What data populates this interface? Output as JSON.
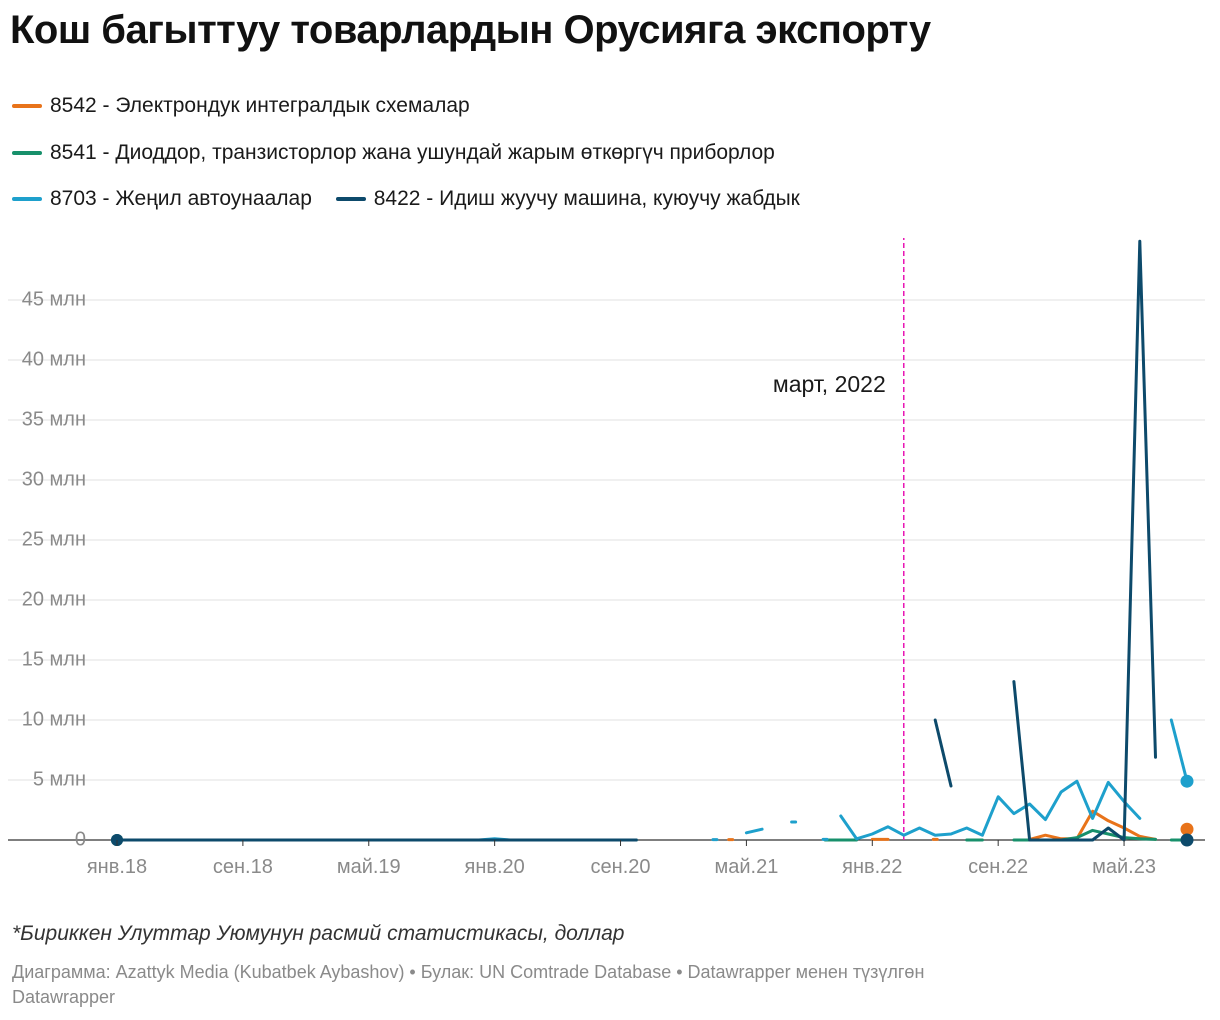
{
  "title": "Кош багыттуу товарлардын Орусияга экспорту",
  "note": "*Бириккен Улуттар Уюмунун расмий статистикасы, доллар",
  "credits": "Диаграмма: Azattyk Media (Kubatbek Aybashov) • Булак: UN Comtrade Database • Datawrapper менен түзүлгөн",
  "credits_brand": "Datawrapper",
  "chart_data": {
    "type": "line",
    "title": "Кош багыттуу товарлардын Орусияга экспорту",
    "x_unit": "month",
    "x_start": "2018-01",
    "x_end": "2023-09",
    "xlim": [
      "2018-01",
      "2023-09"
    ],
    "ylim": [
      0,
      50
    ],
    "y_unit": "млн доллар",
    "grid": true,
    "legend_position": "top",
    "x_ticks": [
      {
        "x": "2018-01",
        "label": "янв.18"
      },
      {
        "x": "2018-09",
        "label": "сен.18"
      },
      {
        "x": "2019-05",
        "label": "май.19"
      },
      {
        "x": "2020-01",
        "label": "янв.20"
      },
      {
        "x": "2020-09",
        "label": "сен.20"
      },
      {
        "x": "2021-05",
        "label": "май.21"
      },
      {
        "x": "2022-01",
        "label": "янв.22"
      },
      {
        "x": "2022-09",
        "label": "сен.22"
      },
      {
        "x": "2023-05",
        "label": "май.23"
      }
    ],
    "y_ticks": [
      {
        "value": 0,
        "label": "0"
      },
      {
        "value": 5,
        "label": "5 млн"
      },
      {
        "value": 10,
        "label": "10 млн"
      },
      {
        "value": 15,
        "label": "15 млн"
      },
      {
        "value": 20,
        "label": "20 млн"
      },
      {
        "value": 25,
        "label": "25 млн"
      },
      {
        "value": 30,
        "label": "30 млн"
      },
      {
        "value": 35,
        "label": "35 млн"
      },
      {
        "value": 40,
        "label": "40 млн"
      },
      {
        "value": 45,
        "label": "45 млн"
      }
    ],
    "annotation": {
      "x": "2022-03",
      "label": "март, 2022",
      "color": "#e815b4"
    },
    "series": [
      {
        "name": "8542 - Электрондук интегралдык схемалар",
        "color": "#e8731a",
        "segments": [
          [
            [
              "2018-01",
              0
            ],
            [
              "2020-10",
              0
            ]
          ],
          [
            [
              "2021-04",
              0.03
            ]
          ],
          [
            [
              "2022-01",
              0.05
            ],
            [
              "2022-02",
              0.05
            ]
          ],
          [
            [
              "2022-05",
              0.05
            ]
          ],
          [
            [
              "2022-11",
              0.05
            ],
            [
              "2022-12",
              0.4
            ],
            [
              "2023-01",
              0.1
            ],
            [
              "2023-02",
              0.1
            ],
            [
              "2023-03",
              2.4
            ],
            [
              "2023-04",
              1.6
            ],
            [
              "2023-05",
              1.0
            ],
            [
              "2023-06",
              0.3
            ],
            [
              "2023-07",
              0.05
            ]
          ]
        ],
        "end_point": [
          "2023-09",
          0.9
        ]
      },
      {
        "name": "8541 - Диоддор, транзисторлор жана ушундай жарым өткөргүч приборлор",
        "color": "#17906b",
        "segments": [
          [
            [
              "2018-01",
              0
            ],
            [
              "2020-10",
              0
            ]
          ],
          [
            [
              "2021-10",
              0
            ],
            [
              "2021-12",
              0
            ]
          ],
          [
            [
              "2022-07",
              0
            ],
            [
              "2022-08",
              0
            ]
          ],
          [
            [
              "2022-10",
              0
            ],
            [
              "2023-01",
              0
            ],
            [
              "2023-02",
              0.2
            ],
            [
              "2023-03",
              0.8
            ],
            [
              "2023-04",
              0.5
            ],
            [
              "2023-05",
              0.2
            ],
            [
              "2023-06",
              0.1
            ],
            [
              "2023-07",
              0.05
            ]
          ],
          [
            [
              "2023-08",
              0
            ],
            [
              "2023-09",
              0
            ]
          ]
        ],
        "end_point": null
      },
      {
        "name": "8703 - Жеңил автоунаалар",
        "color": "#1ea0cc",
        "segments": [
          [
            [
              "2018-01",
              0
            ],
            [
              "2019-12",
              0
            ],
            [
              "2020-01",
              0.1
            ],
            [
              "2020-02",
              0
            ],
            [
              "2020-10",
              0
            ]
          ],
          [
            [
              "2021-03",
              0.03
            ]
          ],
          [
            [
              "2021-05",
              0.6
            ],
            [
              "2021-06",
              0.9
            ]
          ],
          [
            [
              "2021-08",
              1.5
            ]
          ],
          [
            [
              "2021-10",
              0.05
            ]
          ],
          [
            [
              "2021-11",
              2.0
            ],
            [
              "2021-12",
              0.1
            ],
            [
              "2022-01",
              0.5
            ],
            [
              "2022-02",
              1.1
            ],
            [
              "2022-03",
              0.4
            ],
            [
              "2022-04",
              1.0
            ],
            [
              "2022-05",
              0.4
            ],
            [
              "2022-06",
              0.5
            ],
            [
              "2022-07",
              1.0
            ],
            [
              "2022-08",
              0.4
            ],
            [
              "2022-09",
              3.6
            ],
            [
              "2022-10",
              2.2
            ],
            [
              "2022-11",
              3.0
            ],
            [
              "2022-12",
              1.7
            ],
            [
              "2023-01",
              4.0
            ],
            [
              "2023-02",
              4.9
            ],
            [
              "2023-03",
              1.8
            ],
            [
              "2023-04",
              4.8
            ],
            [
              "2023-05",
              3.2
            ],
            [
              "2023-06",
              1.8
            ]
          ],
          [
            [
              "2023-08",
              10.0
            ],
            [
              "2023-09",
              4.9
            ]
          ]
        ],
        "end_point": [
          "2023-09",
          4.9
        ]
      },
      {
        "name": "8422 - Идиш жуучу машина, куюучу жабдык",
        "color": "#0d4a6b",
        "segments": [
          [
            [
              "2018-01",
              0
            ],
            [
              "2020-10",
              0
            ]
          ],
          [
            [
              "2022-05",
              10.0
            ],
            [
              "2022-06",
              4.5
            ]
          ],
          [
            [
              "2022-10",
              13.2
            ],
            [
              "2022-11",
              0
            ],
            [
              "2023-03",
              0
            ],
            [
              "2023-04",
              1.0
            ],
            [
              "2023-05",
              0
            ],
            [
              "2023-06",
              49.9
            ],
            [
              "2023-07",
              6.9
            ]
          ]
        ],
        "end_point": [
          "2023-09",
          0
        ]
      }
    ]
  }
}
